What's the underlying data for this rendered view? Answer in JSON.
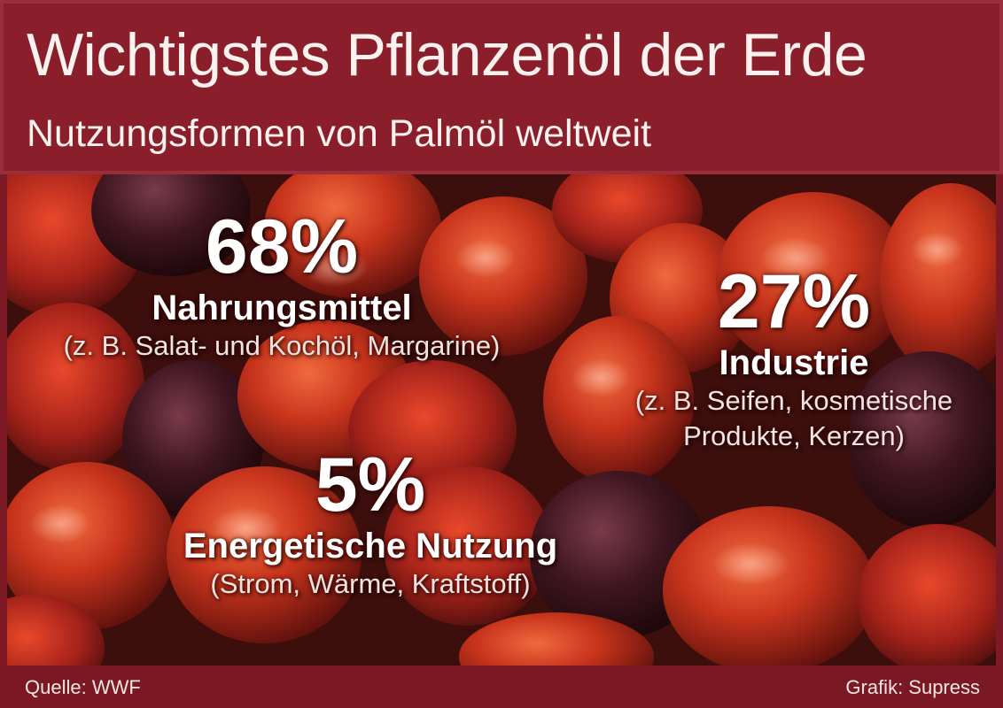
{
  "title": "Wichtigstes Pflanzenöl der Erde",
  "subtitle": "Nutzungsformen von Palmöl weltweit",
  "chart_data": {
    "type": "pie",
    "title": "Wichtigstes Pflanzenöl der Erde",
    "subtitle": "Nutzungsformen von Palmöl weltweit",
    "unit": "%",
    "slices": [
      {
        "label": "Nahrungsmittel",
        "value": 68,
        "value_label": "68%",
        "detail": "(z. B. Salat- und Kochöl, Margarine)"
      },
      {
        "label": "Industrie",
        "value": 27,
        "value_label": "27%",
        "detail_lines": [
          "(z. B. Seifen, kosmetische",
          "Produkte, Kerzen)"
        ]
      },
      {
        "label": "Energetische Nutzung",
        "value": 5,
        "value_label": "5%",
        "detail": "(Strom, Wärme, Kraftstoff)"
      }
    ]
  },
  "footer": {
    "source": "Quelle: WWF",
    "credit": "Grafik: Supress"
  },
  "colors": {
    "header_background": "#8a1e2b",
    "text": "#ffffff"
  },
  "background_image": "palm-fruit-photo"
}
